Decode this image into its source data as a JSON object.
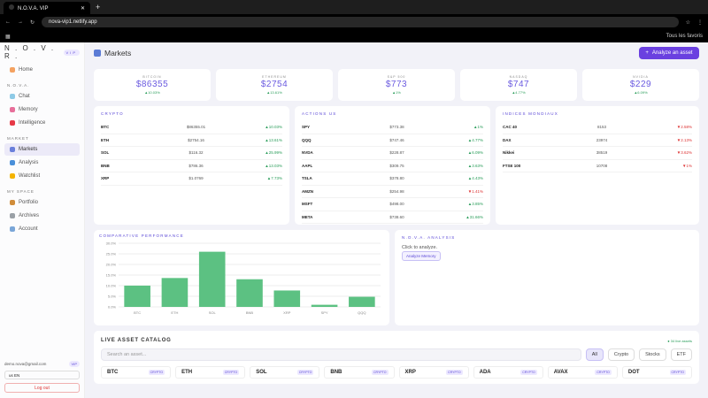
{
  "browser": {
    "tab_title": "N.O.V.A. VIP",
    "url": "nova-vip1.netlify.app",
    "bookmarks_label": "Tous les favoris"
  },
  "sidebar": {
    "logo": "N . O . V . R .",
    "badge": "VIP",
    "sections": [
      {
        "title": "N.O.V.A.",
        "items": [
          "Chat",
          "Memory",
          "Intelligence"
        ]
      },
      {
        "title": "MARKET",
        "items": [
          "Markets",
          "Analysis",
          "Watchlist"
        ]
      },
      {
        "title": "MY SPACE",
        "items": [
          "Portfolio",
          "Archives",
          "Account"
        ]
      }
    ],
    "home": "Home",
    "email": "demo.nova@gmail.com",
    "email_badge": "VIP",
    "lang": "us EN",
    "logout": "Log out"
  },
  "header": {
    "title": "Markets",
    "analyze_btn": "Analyze an asset"
  },
  "tickers": [
    {
      "name": "BITCOIN",
      "price": "$86355",
      "change": "▲10.03%"
    },
    {
      "name": "ETHEREUM",
      "price": "$2754",
      "change": "▲13.61%"
    },
    {
      "name": "S&P 500",
      "price": "$773",
      "change": "▲1%"
    },
    {
      "name": "NASDAQ",
      "price": "$747",
      "change": "▲4.77%"
    },
    {
      "name": "NVIDIA",
      "price": "$229",
      "change": "▲6.09%"
    }
  ],
  "crypto": {
    "title": "CRYPTO",
    "rows": [
      [
        "BTC",
        "$86355.01",
        "▲10.03%"
      ],
      [
        "ETH",
        "$2754.16",
        "▲13.61%"
      ],
      [
        "SOL",
        "$116.32",
        "▲25.99%"
      ],
      [
        "BNB",
        "$786.36",
        "▲13.03%"
      ],
      [
        "XRP",
        "$1.0769",
        "▲7.73%"
      ]
    ]
  },
  "stocks": {
    "title": "ACTIONS US",
    "rows": [
      [
        "SPY",
        "$773.38",
        "▲1%",
        "up"
      ],
      [
        "QQQ",
        "$747.46",
        "▲4.77%",
        "up"
      ],
      [
        "NVDA",
        "$228.87",
        "▲6.09%",
        "up"
      ],
      [
        "AAPL",
        "$309.75",
        "▲3.63%",
        "up"
      ],
      [
        "TSLA",
        "$378.80",
        "▲4.43%",
        "up"
      ],
      [
        "AMZN",
        "$254.98",
        "▼1.41%",
        "dn"
      ],
      [
        "MSFT",
        "$498.00",
        "▲3.85%",
        "up"
      ],
      [
        "META",
        "$738.60",
        "▲31.66%",
        "up"
      ]
    ]
  },
  "indices": {
    "title": "INDICES MONDIAUX",
    "rows": [
      [
        "CAC 40",
        "8153",
        "▼2.58%"
      ],
      [
        "DAX",
        "23974",
        "▼2.13%"
      ],
      [
        "Nikkei",
        "38519",
        "▼3.62%"
      ],
      [
        "FTSE 100",
        "10708",
        "▼1%"
      ]
    ]
  },
  "perf": {
    "title": "COMPARATIVE PERFORMANCE"
  },
  "analysis": {
    "title": "N.O.V.A. ANALYSIS",
    "text": "Click to analyze.",
    "button": "Analyze Memory"
  },
  "catalog": {
    "title": "LIVE ASSET CATALOG",
    "live": "● 34 live assets",
    "placeholder": "Search an asset...",
    "filters": [
      "All",
      "Crypto",
      "Stocks",
      "ETF"
    ],
    "assets": [
      "BTC",
      "ETH",
      "SOL",
      "BNB",
      "XRP",
      "ADA",
      "AVAX",
      "DOT"
    ],
    "asset_tag": "CRYPTO"
  },
  "chart_data": {
    "type": "bar",
    "categories": [
      "BTC",
      "ETH",
      "SOL",
      "BNB",
      "XRP",
      "SPY",
      "QQQ"
    ],
    "values": [
      10.03,
      13.61,
      25.99,
      13.03,
      7.73,
      1,
      4.77
    ],
    "ylim": [
      0,
      30
    ],
    "yticks": [
      "0.0%",
      "5.0%",
      "10.0%",
      "15.0%",
      "20.0%",
      "25.0%",
      "30.0%"
    ],
    "color": "#5cc182"
  }
}
